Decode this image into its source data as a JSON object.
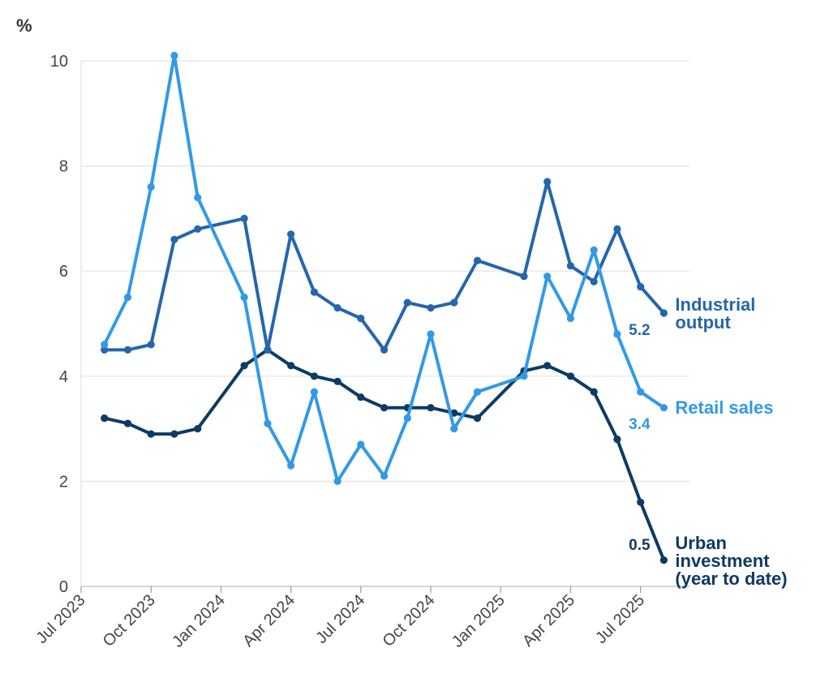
{
  "chart_data": {
    "type": "line",
    "ylabel": "%",
    "ylim": [
      0,
      10
    ],
    "yticks": [
      "0",
      "2",
      "4",
      "6",
      "8",
      "10"
    ],
    "xticks": [
      "Jul 2023",
      "Oct 2023",
      "Jan 2024",
      "Apr 2024",
      "Jul 2024",
      "Oct 2024",
      "Jan 2025",
      "Apr 2025",
      "Jul 2025"
    ],
    "grid": true,
    "x": [
      "2023-08",
      "2023-09",
      "2023-10",
      "2023-11",
      "2023-12",
      "2024-02",
      "2024-03",
      "2024-04",
      "2024-05",
      "2024-06",
      "2024-07",
      "2024-08",
      "2024-09",
      "2024-10",
      "2024-11",
      "2024-12",
      "2025-02",
      "2025-03",
      "2025-04",
      "2025-05",
      "2025-06",
      "2025-07",
      "2025-08"
    ],
    "series": [
      {
        "name": "Industrial output",
        "name_lines": [
          "Industrial",
          "output"
        ],
        "color": "#2566ad",
        "end_label": "5.2",
        "values": [
          4.5,
          4.5,
          4.6,
          6.6,
          6.8,
          7.0,
          4.5,
          6.7,
          5.6,
          5.3,
          5.1,
          4.5,
          5.4,
          5.3,
          5.4,
          6.2,
          5.9,
          7.7,
          6.1,
          5.8,
          6.8,
          5.7,
          5.2
        ]
      },
      {
        "name": "Retail sales",
        "name_lines": [
          "Retail sales"
        ],
        "color": "#3399e6",
        "end_label": "3.4",
        "values": [
          4.6,
          5.5,
          7.6,
          10.1,
          7.4,
          5.5,
          3.1,
          2.3,
          3.7,
          2.0,
          2.7,
          2.1,
          3.2,
          4.8,
          3.0,
          3.7,
          4.0,
          5.9,
          5.1,
          6.4,
          4.8,
          3.7,
          3.4
        ]
      },
      {
        "name": "Urban investment (year to date)",
        "name_lines": [
          "Urban",
          "investment",
          "(year to date)"
        ],
        "color": "#0e3a63",
        "end_label": "0.5",
        "values": [
          3.2,
          3.1,
          2.9,
          2.9,
          3.0,
          4.2,
          4.5,
          4.2,
          4.0,
          3.9,
          3.6,
          3.4,
          3.4,
          3.4,
          3.3,
          3.2,
          4.1,
          4.2,
          4.0,
          3.7,
          2.8,
          1.6,
          0.5
        ]
      }
    ]
  }
}
